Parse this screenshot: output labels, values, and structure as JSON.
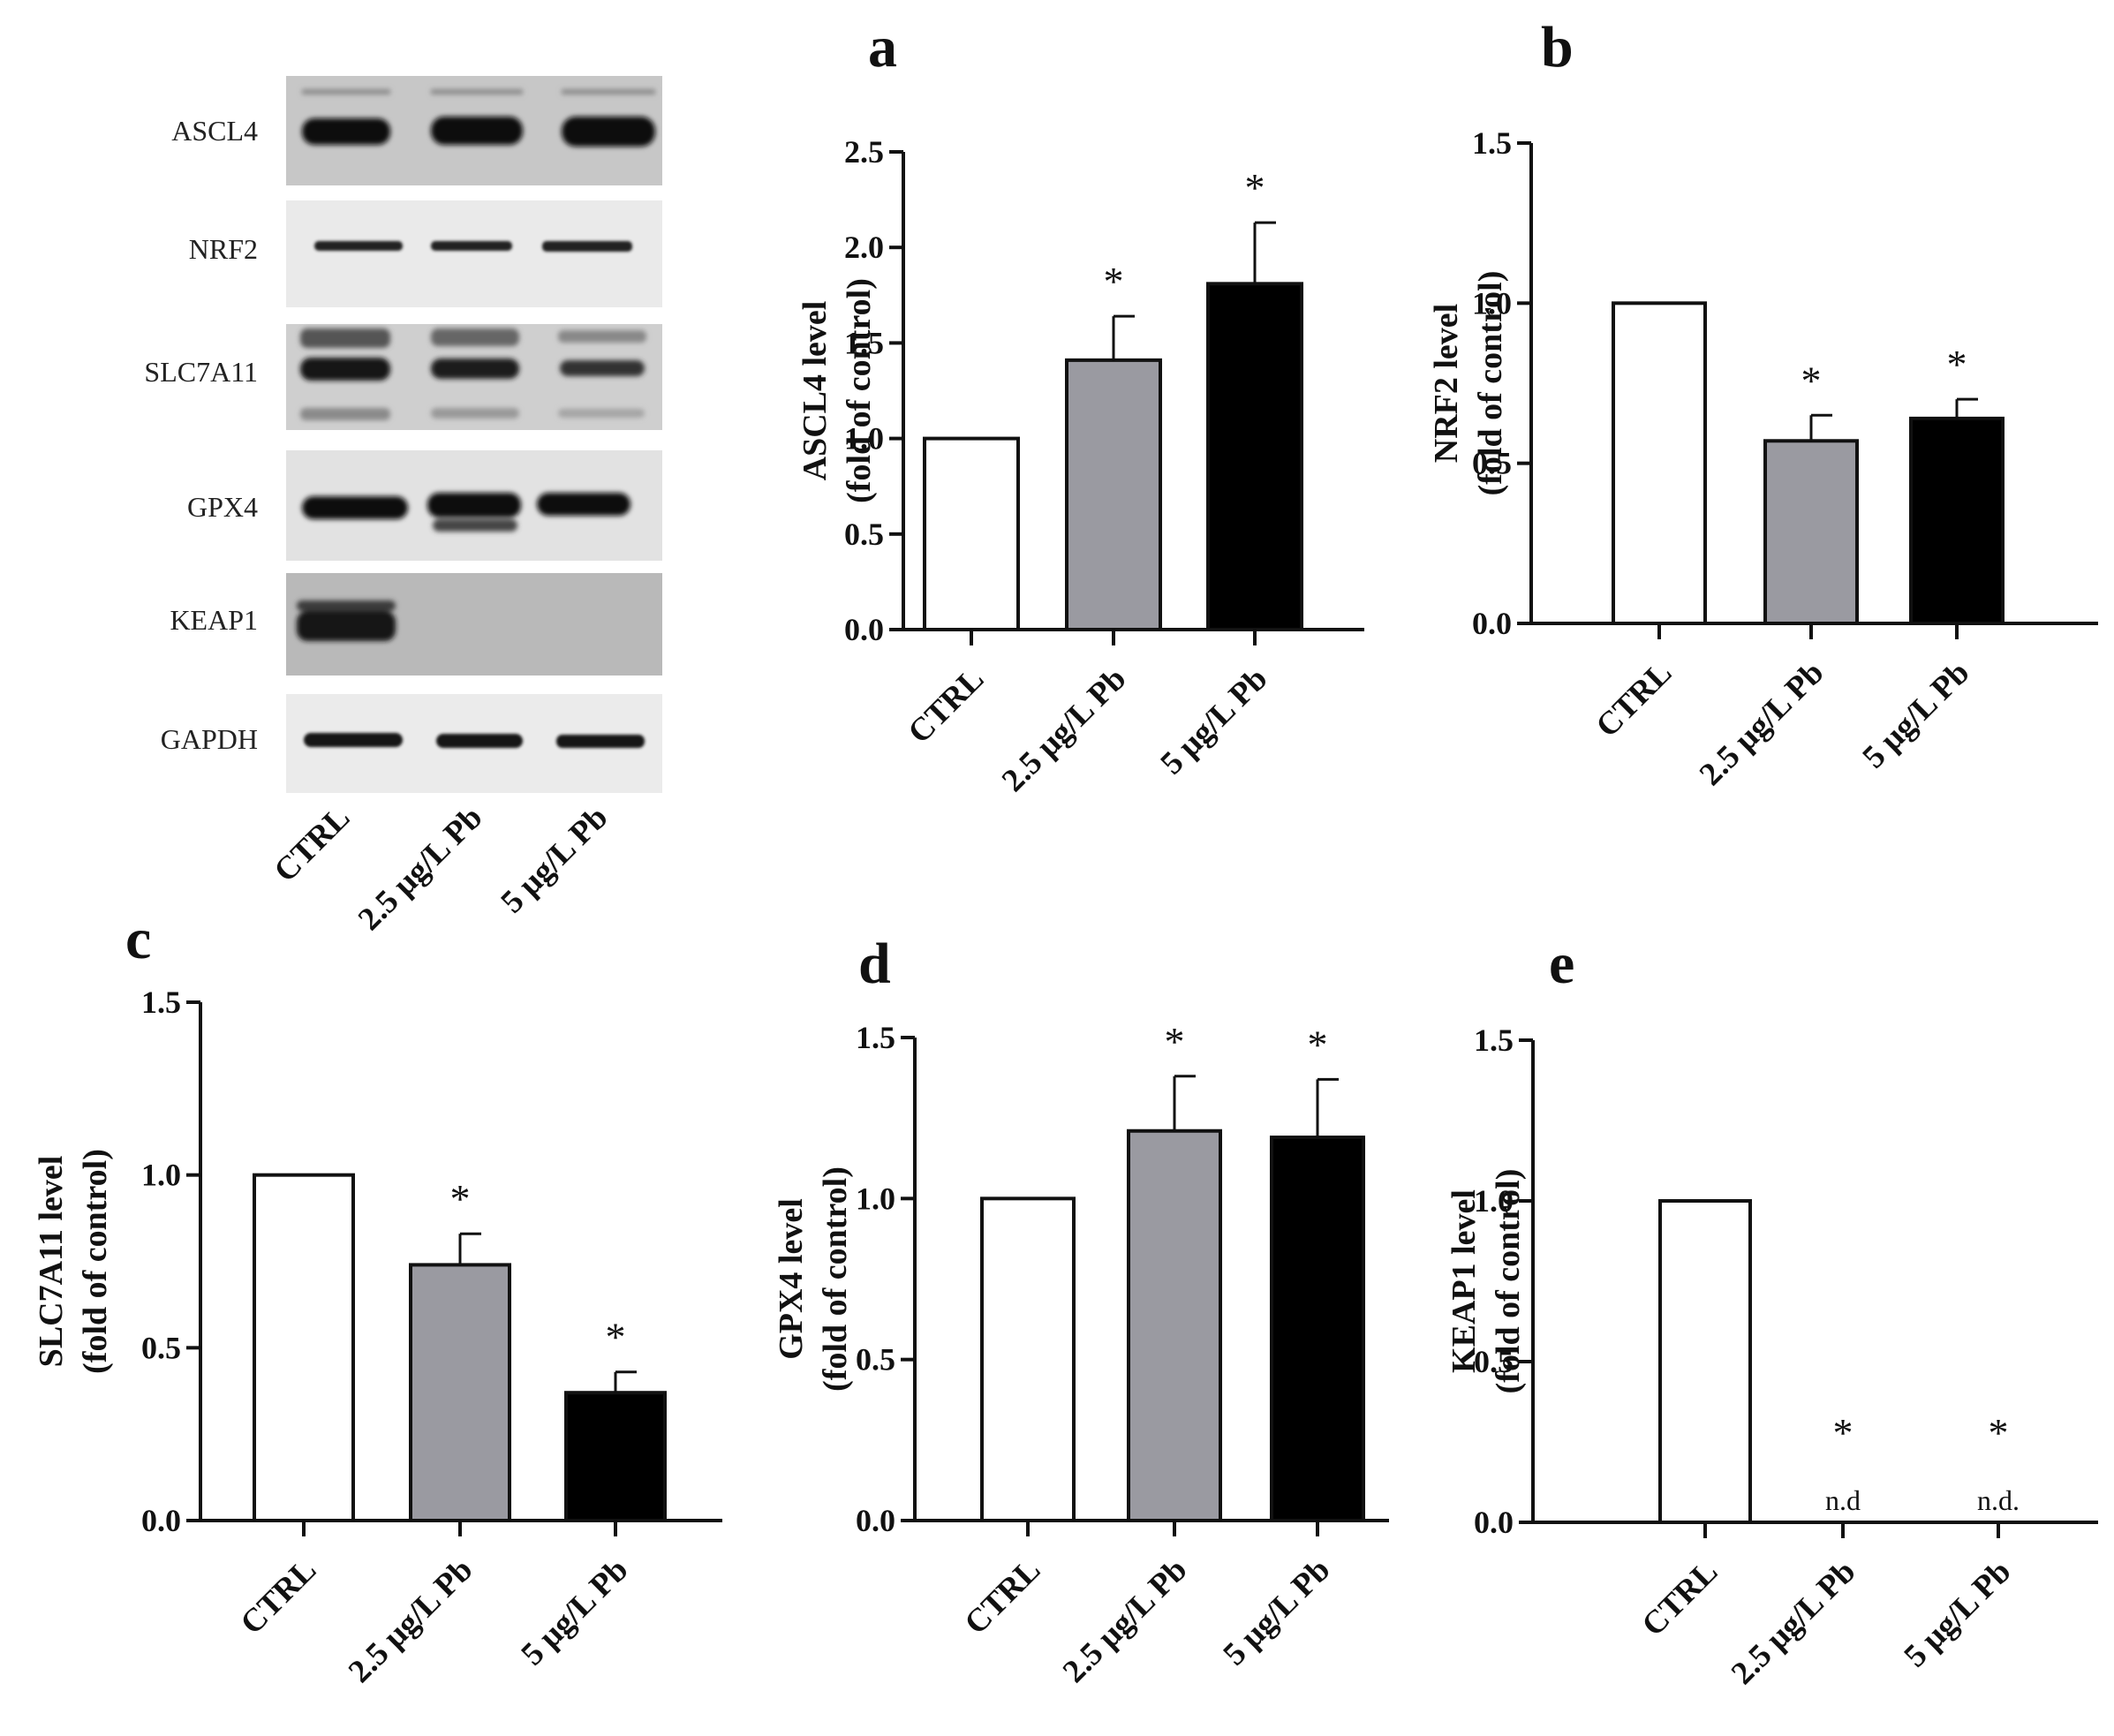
{
  "western_blot": {
    "labels": [
      "ASCL4",
      "NRF2",
      "SLC7A11",
      "GPX4",
      "KEAP1",
      "GAPDH"
    ],
    "lane_labels": [
      "CTRL",
      "2.5 μg/L Pb",
      "5 μg/L Pb"
    ]
  },
  "colors": {
    "CTRL": "#ffffff",
    "2.5 μg/L Pb": "#9a9aa1",
    "5 μg/L Pb": "#000000",
    "axis": "#111111"
  },
  "chart_data": [
    {
      "panel": "a",
      "type": "bar",
      "categories": [
        "CTRL",
        "2.5 μg/L Pb",
        "5 μg/L Pb"
      ],
      "values": [
        1.0,
        1.41,
        1.81
      ],
      "errors": [
        0,
        0.23,
        0.32
      ],
      "markers": [
        "",
        "*",
        "*"
      ],
      "value_labels": [
        "",
        "",
        ""
      ],
      "ylabel": [
        "ASCL4 level",
        "(fold of control)"
      ],
      "ylim": [
        0,
        2.5
      ],
      "yticks": [
        "0.0",
        "0.5",
        "1.0",
        "1.5",
        "2.0",
        "2.5"
      ]
    },
    {
      "panel": "b",
      "type": "bar",
      "categories": [
        "CTRL",
        "2.5 μg/L Pb",
        "5 μg/L Pb"
      ],
      "values": [
        1.0,
        0.57,
        0.64
      ],
      "errors": [
        0,
        0.08,
        0.06
      ],
      "markers": [
        "",
        "*",
        "*"
      ],
      "value_labels": [
        "",
        "",
        ""
      ],
      "ylabel": [
        "NRF2 level",
        "(fold of control)"
      ],
      "ylim": [
        0,
        1.5
      ],
      "yticks": [
        "0.0",
        "0.5",
        "1.0",
        "1.5"
      ]
    },
    {
      "panel": "c",
      "type": "bar",
      "categories": [
        "CTRL",
        "2.5 μg/L Pb",
        "5 μg/L Pb"
      ],
      "values": [
        1.0,
        0.74,
        0.37
      ],
      "errors": [
        0,
        0.09,
        0.06
      ],
      "markers": [
        "",
        "*",
        "*"
      ],
      "value_labels": [
        "",
        "",
        ""
      ],
      "ylabel": [
        "SLC7A11 level",
        "(fold of control)"
      ],
      "ylim": [
        0,
        1.5
      ],
      "yticks": [
        "0.0",
        "0.5",
        "1.0",
        "1.5"
      ]
    },
    {
      "panel": "d",
      "type": "bar",
      "categories": [
        "CTRL",
        "2.5 μg/L Pb",
        "5 μg/L Pb"
      ],
      "values": [
        1.0,
        1.21,
        1.19
      ],
      "errors": [
        0,
        0.17,
        0.18
      ],
      "markers": [
        "",
        "*",
        "*"
      ],
      "value_labels": [
        "",
        "",
        ""
      ],
      "ylabel": [
        "GPX4 level",
        "(fold of control)"
      ],
      "ylim": [
        0,
        1.5
      ],
      "yticks": [
        "0.0",
        "0.5",
        "1.0",
        "1.5"
      ]
    },
    {
      "panel": "e",
      "type": "bar",
      "categories": [
        "CTRL",
        "2.5 μg/L Pb",
        "5 μg/L Pb"
      ],
      "values": [
        1.0,
        0,
        0
      ],
      "errors": [
        0,
        0,
        0
      ],
      "markers": [
        "",
        "*",
        "*"
      ],
      "value_labels": [
        "",
        "n.d",
        "n.d."
      ],
      "ylabel": [
        "KEAP1 level",
        "(fold of control)"
      ],
      "ylim": [
        0,
        1.5
      ],
      "yticks": [
        "0.0",
        "0.5",
        "1.0",
        "1.5"
      ]
    }
  ]
}
